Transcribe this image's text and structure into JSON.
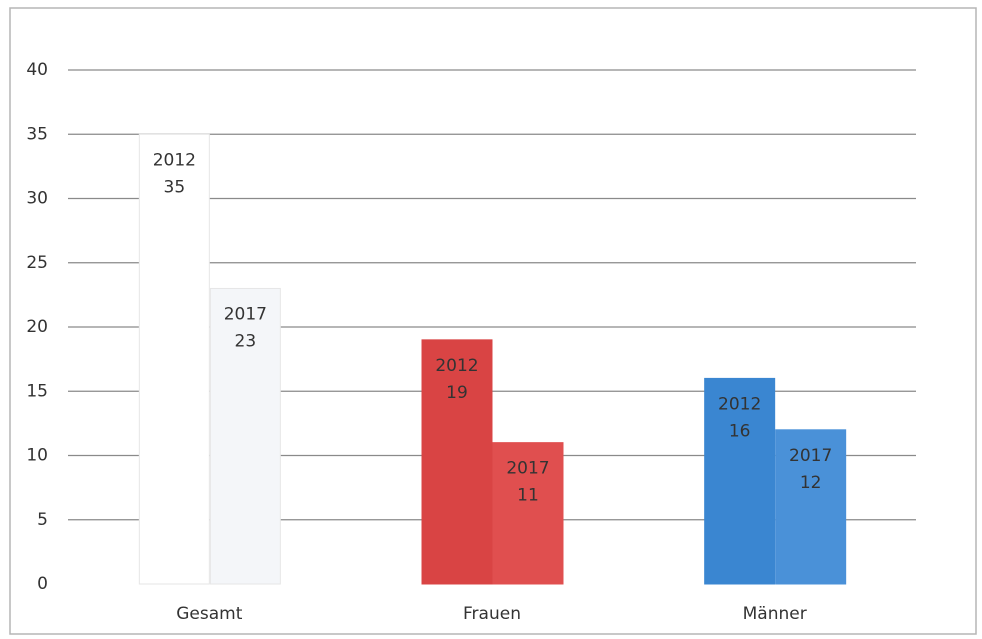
{
  "chart_data": {
    "type": "bar",
    "categories": [
      "Gesamt",
      "Frauen",
      "Männer"
    ],
    "series": [
      {
        "name": "2012",
        "values": [
          35,
          19,
          16
        ],
        "colors": [
          "#ffffff",
          "#d94444",
          "#3a86d1"
        ]
      },
      {
        "name": "2017",
        "values": [
          23,
          11,
          12
        ],
        "colors": [
          "#f4f6f9",
          "#e04f4f",
          "#4a91d8"
        ]
      }
    ],
    "ylim": [
      0,
      40
    ],
    "yticks": [
      0,
      5,
      10,
      15,
      20,
      25,
      30,
      35,
      40
    ],
    "grid": true
  }
}
